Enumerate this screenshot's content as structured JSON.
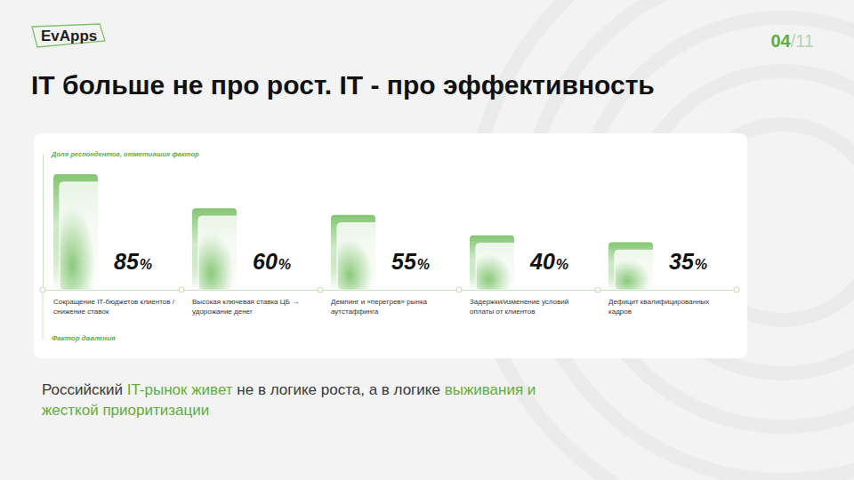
{
  "header": {
    "logo": "EvApps",
    "page_number": "04",
    "page_total": "/11",
    "title": "IT больше не про рост. IT - про эффективность"
  },
  "chart_data": {
    "type": "bar",
    "y_label": "Доля респондентов, отметивших фактор",
    "x_label": "Фактор давления",
    "categories": [
      "Сокращение IT-бюджетов клиентов / снижение ставок",
      "Высокая ключевая ставка ЦБ → удорожание денег",
      "Демпинг и «перегрев» рынка аутстаффинга",
      "Задержки/изменение условий оплаты от клиентов",
      "Дефицит квалифицированных кадров"
    ],
    "values": [
      85,
      60,
      55,
      40,
      35
    ],
    "value_labels": [
      "85%",
      "60%",
      "55%",
      "40%",
      "35%"
    ],
    "color": "#7dc36b",
    "ylim": [
      0,
      100
    ],
    "grid": false,
    "data_labels": true,
    "tick_labels": "x"
  },
  "footer": {
    "text": [
      {
        "text": "Российский ",
        "highlight": false
      },
      {
        "text": "IT-рынок живет",
        "highlight": true
      },
      {
        "text": " не в логике роста, а в логике ",
        "highlight": false
      },
      {
        "text": "выживания и жесткой приоритизации",
        "highlight": true
      }
    ]
  }
}
